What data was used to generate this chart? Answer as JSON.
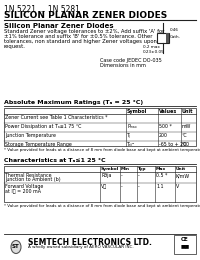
{
  "title_line1": "1N 5221 ... 1N 5281",
  "title_line2": "SILICON PLANAR ZENER DIODES",
  "bg_color": "#ffffff",
  "section1_title": "Silicon Planar Zener Diodes",
  "body_lines": [
    "Standard Zener voltage tolerances to ±2%, Add suffix 'A' for",
    "±1% tolerance and suffix 'B' for ±0.5% tolerance. Other",
    "tolerances, non standard and higher Zener voltages upon",
    "request."
  ],
  "diag_note1": "Case code JEDEC DO-035",
  "diag_note2": "Dimensions in mm",
  "abs_title": "Absolute Maximum Ratings (Tₐ = 25 °C)",
  "abs_col_headers": [
    "Symbol",
    "Values",
    "Unit"
  ],
  "abs_rows": [
    [
      "Zener Current see Table 1 Characteristics *",
      "",
      "",
      ""
    ],
    [
      "Power Dissipation at Tₐ≤1 75 °C",
      "Pₘₐₓ",
      "500 *",
      "mW"
    ],
    [
      "Junction Temperature",
      "Tⱼ",
      "200",
      "°C"
    ],
    [
      "Storage Temperature Range",
      "Tₛₜᴳ",
      "-65 to + 200",
      "°C"
    ]
  ],
  "abs_footnote": "* Value provided for leads at a distance of 8 mm from diode base and kept at ambient temperature.",
  "char_title": "Characteristics at Tₐ≤1 25 °C",
  "char_col_headers": [
    "Symbol",
    "Min",
    "Typ",
    "Max",
    "Unit"
  ],
  "char_rows": [
    [
      "Thermal Resistance",
      "Rθja",
      "-",
      "-",
      "0.5 *",
      "K/mW"
    ],
    [
      "Junction to Ambient (b)",
      "",
      "",
      "",
      "",
      ""
    ],
    [
      "Forward Voltage",
      "Vⰼ",
      "-",
      "-",
      "1.1",
      "V"
    ],
    [
      "at Iⰼ = 200 mA",
      "",
      "",
      "",
      "",
      ""
    ]
  ],
  "char_footnote": "* Value provided for leads at a distance of 8 mm from diode base and kept at ambient temperature.",
  "footer_company": "SEMTECH ELECTRONICS LTD.",
  "footer_sub": "A wholly owned subsidiary of AERO VASCULAR INC."
}
